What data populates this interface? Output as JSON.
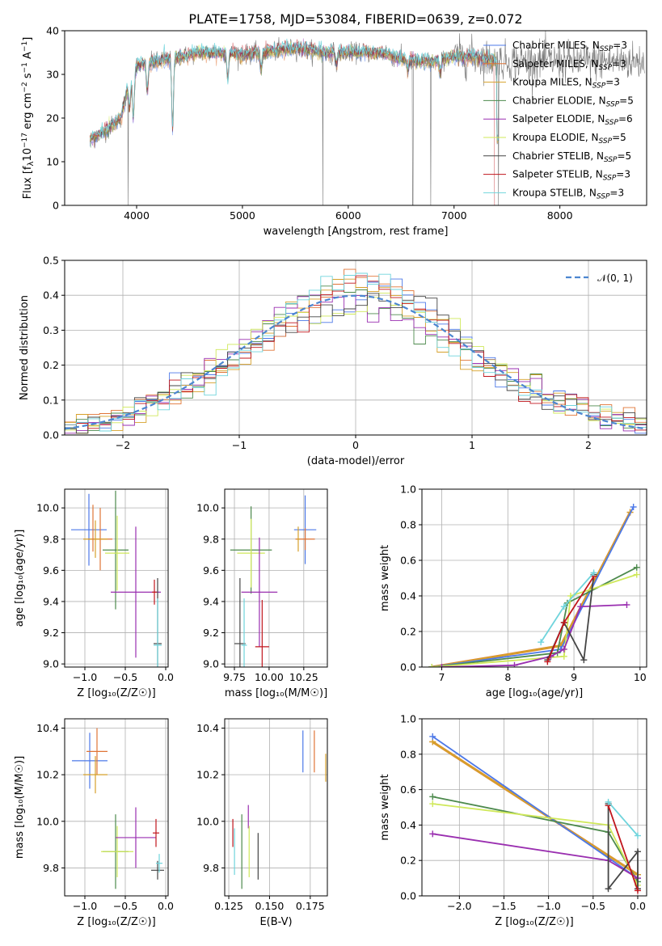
{
  "colors": {
    "Chabrier MILES": "#4c78e8",
    "Salpeter MILES": "#e07436",
    "Kroupa MILES": "#d6a02a",
    "Chabrier ELODIE": "#4d8a4d",
    "Salpeter ELODIE": "#9a2fb0",
    "Kroupa ELODIE": "#cfe85a",
    "Chabrier STELIB": "#444444",
    "Salpeter STELIB": "#c0161d",
    "Kroupa STELIB": "#6fd4dc",
    "gaussian": "#4c86d0"
  },
  "chart_data": [
    {
      "id": "spectrum",
      "type": "line",
      "title": "PLATE=1758, MJD=53084, FIBERID=0639, z=0.072",
      "xlabel": "wavelength [Angstrom, rest frame]",
      "ylabel_parts": [
        "Flux [f",
        "λ",
        "10",
        "−17",
        " erg cm",
        "−2",
        " s",
        "−1",
        " A",
        "−1",
        "]"
      ],
      "xlim": [
        3320,
        8820
      ],
      "ylim": [
        0,
        40
      ],
      "xticks": [
        "4000",
        "5000",
        "6000",
        "7000",
        "8000"
      ],
      "yticks": [
        "0",
        "10",
        "20",
        "30",
        "40"
      ],
      "grid": false,
      "legend_position": "right",
      "legend": [
        {
          "name": "Chabrier MILES",
          "nssp": "3"
        },
        {
          "name": "Salpeter MILES",
          "nssp": "3"
        },
        {
          "name": "Kroupa MILES",
          "nssp": "3"
        },
        {
          "name": "Chabrier ELODIE",
          "nssp": "5"
        },
        {
          "name": "Salpeter ELODIE",
          "nssp": "6"
        },
        {
          "name": "Kroupa ELODIE",
          "nssp": "5"
        },
        {
          "name": "Chabrier STELIB",
          "nssp": "5"
        },
        {
          "name": "Salpeter STELIB",
          "nssp": "3"
        },
        {
          "name": "Kroupa STELIB",
          "nssp": "3"
        }
      ],
      "continuum": [
        [
          3560,
          15
        ],
        [
          3700,
          17
        ],
        [
          3850,
          20
        ],
        [
          3930,
          28
        ],
        [
          4000,
          32
        ],
        [
          4200,
          33
        ],
        [
          4400,
          34
        ],
        [
          4600,
          35
        ],
        [
          4800,
          35
        ],
        [
          5000,
          34.5
        ],
        [
          5200,
          35
        ],
        [
          5500,
          36
        ],
        [
          5800,
          35
        ],
        [
          6000,
          35
        ],
        [
          6300,
          35
        ],
        [
          6560,
          33
        ],
        [
          6800,
          33
        ],
        [
          7000,
          34
        ],
        [
          7200,
          34
        ],
        [
          7400,
          33
        ]
      ],
      "absorption": [
        [
          3934,
          22
        ],
        [
          3969,
          20
        ],
        [
          4101,
          26
        ],
        [
          4340,
          18
        ],
        [
          4861,
          29
        ],
        [
          5175,
          31
        ],
        [
          5890,
          32
        ],
        [
          6563,
          31
        ],
        [
          6870,
          30
        ]
      ],
      "data_dropouts": [
        [
          3920,
          0
        ],
        [
          5760,
          0
        ],
        [
          6610,
          0
        ],
        [
          6780,
          0
        ],
        [
          7420,
          0
        ]
      ]
    },
    {
      "id": "residuals",
      "type": "step",
      "xlabel": "(data-model)/error",
      "ylabel": "Normed distribution",
      "xlim": [
        -2.5,
        2.5
      ],
      "ylim": [
        0,
        0.5
      ],
      "xticks": [
        "−2",
        "−1",
        "0",
        "1",
        "2"
      ],
      "yticks": [
        "0.0",
        "0.1",
        "0.2",
        "0.3",
        "0.4",
        "0.5"
      ],
      "grid": true,
      "legend_position": "upper right",
      "legend_label": "𝒩(0, 1)",
      "bin_width": 0.1,
      "gaussian": {
        "mean": 0,
        "sigma": 1
      }
    },
    {
      "id": "age-vs-z",
      "type": "errorbar",
      "xlabel": "Z [log₁₀(Z/Z☉)]",
      "ylabel": "age  [log₁₀(age/yr)]",
      "xlim": [
        -1.25,
        0.03
      ],
      "ylim": [
        8.98,
        10.12
      ],
      "xticks": [
        "−1.0",
        "−0.5",
        "0.0"
      ],
      "xtick_values": [
        -1.0,
        -0.5,
        0.0
      ],
      "yticks": [
        "9.0",
        "9.2",
        "9.4",
        "9.6",
        "9.8",
        "10.0"
      ],
      "ytick_values": [
        9.0,
        9.2,
        9.4,
        9.6,
        9.8,
        10.0
      ],
      "grid": true,
      "points": [
        {
          "series": "Chabrier MILES",
          "x": -0.95,
          "xerr": 0.22,
          "y": 9.86,
          "yerr": 0.23
        },
        {
          "series": "Salpeter MILES",
          "x": -0.81,
          "xerr": 0.15,
          "y": 9.8,
          "yerr": 0.2
        },
        {
          "series": "Kroupa MILES",
          "x": -0.87,
          "xerr": 0.15,
          "y": 9.8,
          "yerr": 0.12
        },
        {
          "series": "Chabrier ELODIE",
          "x": -0.62,
          "xerr": 0.16,
          "y": 9.73,
          "yerr": 0.38
        },
        {
          "series": "Kroupa ELODIE",
          "x": -0.6,
          "xerr": 0.15,
          "y": 9.71,
          "yerr": 0.24
        },
        {
          "series": "Salpeter ELODIE",
          "x": -0.37,
          "xerr": 0.31,
          "y": 9.46,
          "yerr": 0.42
        },
        {
          "series": "Chabrier STELIB",
          "x": -0.1,
          "xerr": 0.05,
          "y": 9.13,
          "yerr": 0.42
        },
        {
          "series": "Kroupa STELIB",
          "x": -0.1,
          "xerr": 0.05,
          "y": 9.12,
          "yerr": 0.3
        },
        {
          "series": "Salpeter STELIB",
          "x": -0.14,
          "xerr": 0.03,
          "y": 9.46,
          "yerr": 0.08
        },
        {
          "series": "Salpeter MILES",
          "x": -0.9,
          "xerr": 0,
          "y": 9.87,
          "yerr": 0.15
        }
      ]
    },
    {
      "id": "age-vs-mass",
      "type": "errorbar",
      "xlabel": "mass [log₁₀(M/M☉)]",
      "ylabel": "",
      "xlim": [
        9.68,
        10.42
      ],
      "ylim": [
        8.98,
        10.12
      ],
      "xticks": [
        "9.75",
        "10.00",
        "10.25"
      ],
      "xtick_values": [
        9.75,
        10.0,
        10.25
      ],
      "yticks": [
        "9.0",
        "9.2",
        "9.4",
        "9.6",
        "9.8",
        "10.0"
      ],
      "ytick_values": [
        9.0,
        9.2,
        9.4,
        9.6,
        9.8,
        10.0
      ],
      "grid": true,
      "points": [
        {
          "series": "Chabrier MILES",
          "x": 10.26,
          "xerr": 0.08,
          "y": 9.86,
          "yerr": 0.22
        },
        {
          "series": "Salpeter MILES",
          "x": 10.26,
          "xerr": 0.07,
          "y": 9.8,
          "yerr": 0.07
        },
        {
          "series": "Kroupa MILES",
          "x": 10.21,
          "xerr": 0.01,
          "y": 9.8,
          "yerr": 0.08
        },
        {
          "series": "Chabrier ELODIE",
          "x": 9.87,
          "xerr": 0.15,
          "y": 9.73,
          "yerr": 0.28
        },
        {
          "series": "Kroupa ELODIE",
          "x": 9.87,
          "xerr": 0.1,
          "y": 9.71,
          "yerr": 0.22
        },
        {
          "series": "Salpeter ELODIE",
          "x": 9.93,
          "xerr": 0.13,
          "y": 9.46,
          "yerr": 0.35
        },
        {
          "series": "Chabrier STELIB",
          "x": 9.79,
          "xerr": 0.04,
          "y": 9.13,
          "yerr": 0.42
        },
        {
          "series": "Kroupa STELIB",
          "x": 9.82,
          "xerr": 0.02,
          "y": 9.12,
          "yerr": 0.3
        },
        {
          "series": "Salpeter STELIB",
          "x": 9.95,
          "xerr": 0.05,
          "y": 9.11,
          "yerr": 0.3
        }
      ]
    },
    {
      "id": "weight-vs-age",
      "type": "line",
      "xlabel": "age  [log₁₀(age/yr)]",
      "ylabel": "mass weight",
      "xlim": [
        6.7,
        10.1
      ],
      "ylim": [
        0,
        1
      ],
      "xticks": [
        "7",
        "8",
        "9",
        "10"
      ],
      "xtick_values": [
        7,
        8,
        9,
        10
      ],
      "yticks": [
        "0.0",
        "0.2",
        "0.4",
        "0.6",
        "0.8",
        "1.0"
      ],
      "ytick_values": [
        0,
        0.2,
        0.4,
        0.6,
        0.8,
        1.0
      ],
      "grid": true,
      "series": [
        {
          "name": "Salpeter MILES",
          "x": [
            6.85,
            8.8,
            9.85
          ],
          "y": [
            0.0,
            0.12,
            0.87
          ]
        },
        {
          "name": "Kroupa MILES",
          "x": [
            6.85,
            8.8,
            9.85
          ],
          "y": [
            0.0,
            0.12,
            0.87
          ]
        },
        {
          "name": "Chabrier MILES",
          "x": [
            6.85,
            8.8,
            9.9
          ],
          "y": [
            0.0,
            0.1,
            0.9
          ]
        },
        {
          "name": "Chabrier ELODIE",
          "x": [
            6.85,
            8.75,
            8.9,
            9.95
          ],
          "y": [
            0.0,
            0.08,
            0.36,
            0.56
          ]
        },
        {
          "name": "Kroupa ELODIE",
          "x": [
            6.85,
            8.85,
            8.95,
            9.95
          ],
          "y": [
            0.0,
            0.06,
            0.4,
            0.52
          ]
        },
        {
          "name": "Salpeter ELODIE",
          "x": [
            7.0,
            8.1,
            8.65,
            8.85,
            9.1,
            9.8
          ],
          "y": [
            0.0,
            0.01,
            0.06,
            0.1,
            0.34,
            0.35
          ]
        },
        {
          "name": "Chabrier STELIB",
          "x": [
            8.6,
            8.85,
            9.15,
            9.3
          ],
          "y": [
            0.04,
            0.25,
            0.04,
            0.52
          ]
        },
        {
          "name": "Salpeter STELIB",
          "x": [
            8.6,
            8.85,
            9.3
          ],
          "y": [
            0.03,
            0.25,
            0.51
          ]
        },
        {
          "name": "Kroupa STELIB",
          "x": [
            8.5,
            8.85,
            9.3
          ],
          "y": [
            0.14,
            0.34,
            0.53
          ]
        }
      ]
    },
    {
      "id": "mass-vs-z",
      "type": "errorbar",
      "xlabel": "Z [log₁₀(Z/Z☉)]",
      "ylabel": "mass [log₁₀(M/M☉)]",
      "xlim": [
        -1.25,
        0.03
      ],
      "ylim": [
        9.68,
        10.44
      ],
      "xticks": [
        "−1.0",
        "−0.5",
        "0.0"
      ],
      "xtick_values": [
        -1.0,
        -0.5,
        0.0
      ],
      "yticks": [
        "9.8",
        "10.0",
        "10.2",
        "10.4"
      ],
      "ytick_values": [
        9.8,
        10.0,
        10.2,
        10.4
      ],
      "grid": true,
      "points": [
        {
          "series": "Chabrier MILES",
          "x": -0.94,
          "xerr": 0.22,
          "y": 10.26,
          "yerr": 0.12
        },
        {
          "series": "Salpeter MILES",
          "x": -0.85,
          "xerr": 0.13,
          "y": 10.3,
          "yerr": 0.1
        },
        {
          "series": "Kroupa MILES",
          "x": -0.87,
          "xerr": 0.15,
          "y": 10.2,
          "yerr": 0.08
        },
        {
          "series": "Chabrier ELODIE",
          "x": -0.62,
          "xerr": 0.16,
          "y": 9.87,
          "yerr": 0.16
        },
        {
          "series": "Kroupa ELODIE",
          "x": -0.6,
          "xerr": 0.2,
          "y": 9.87,
          "yerr": 0.11
        },
        {
          "series": "Salpeter ELODIE",
          "x": -0.37,
          "xerr": 0.25,
          "y": 9.93,
          "yerr": 0.13
        },
        {
          "series": "Chabrier STELIB",
          "x": -0.1,
          "xerr": 0.08,
          "y": 9.79,
          "yerr": 0.04
        },
        {
          "series": "Kroupa STELIB",
          "x": -0.08,
          "xerr": 0.04,
          "y": 9.82,
          "yerr": 0.04
        },
        {
          "series": "Salpeter STELIB",
          "x": -0.12,
          "xerr": 0.04,
          "y": 9.95,
          "yerr": 0.06
        }
      ]
    },
    {
      "id": "mass-vs-ebv",
      "type": "errorbar",
      "xlabel": "E(B-V)",
      "ylabel": "",
      "xlim": [
        0.1225,
        0.1855
      ],
      "ylim": [
        9.68,
        10.44
      ],
      "xticks": [
        "0.125",
        "0.150",
        "0.175"
      ],
      "xtick_values": [
        0.125,
        0.15,
        0.175
      ],
      "yticks": [
        "9.8",
        "10.0",
        "10.2",
        "10.4"
      ],
      "ytick_values": [
        9.8,
        10.0,
        10.2,
        10.4
      ],
      "grid": true,
      "points": [
        {
          "series": "Chabrier MILES",
          "x": 0.1705,
          "xerr": 0,
          "y": 10.3,
          "yerr": 0.09
        },
        {
          "series": "Salpeter MILES",
          "x": 0.1775,
          "xerr": 0,
          "y": 10.3,
          "yerr": 0.09
        },
        {
          "series": "Kroupa MILES",
          "x": 0.1845,
          "xerr": 0,
          "y": 10.23,
          "yerr": 0.06
        },
        {
          "series": "Salpeter STELIB",
          "x": 0.1275,
          "xerr": 0,
          "y": 9.95,
          "yerr": 0.06
        },
        {
          "series": "Kroupa STELIB",
          "x": 0.1285,
          "xerr": 0,
          "y": 9.87,
          "yerr": 0.1
        },
        {
          "series": "Chabrier ELODIE",
          "x": 0.133,
          "xerr": 0,
          "y": 9.87,
          "yerr": 0.16
        },
        {
          "series": "Salpeter ELODIE",
          "x": 0.137,
          "xerr": 0,
          "y": 10.02,
          "yerr": 0.05
        },
        {
          "series": "Kroupa ELODIE",
          "x": 0.1375,
          "xerr": 0,
          "y": 9.87,
          "yerr": 0.11
        },
        {
          "series": "Chabrier STELIB",
          "x": 0.143,
          "xerr": 0,
          "y": 9.85,
          "yerr": 0.1
        }
      ]
    },
    {
      "id": "weight-vs-z",
      "type": "line",
      "xlabel": "Z [log₁₀(Z/Z☉)]",
      "ylabel": "mass weight",
      "xlim": [
        -2.42,
        0.1
      ],
      "ylim": [
        0,
        1
      ],
      "xticks": [
        "−2.0",
        "−1.5",
        "−1.0",
        "−0.5",
        "0.0"
      ],
      "xtick_values": [
        -2.0,
        -1.5,
        -1.0,
        -0.5,
        0.0
      ],
      "yticks": [
        "0.0",
        "0.2",
        "0.4",
        "0.6",
        "0.8",
        "1.0"
      ],
      "ytick_values": [
        0,
        0.2,
        0.4,
        0.6,
        0.8,
        1.0
      ],
      "grid": true,
      "series": [
        {
          "name": "Salpeter MILES",
          "x": [
            -2.3,
            0.0
          ],
          "y": [
            0.87,
            0.12
          ]
        },
        {
          "name": "Kroupa MILES",
          "x": [
            -2.3,
            0.0
          ],
          "y": [
            0.87,
            0.12
          ]
        },
        {
          "name": "Chabrier MILES",
          "x": [
            -2.3,
            0.0
          ],
          "y": [
            0.9,
            0.1
          ]
        },
        {
          "name": "Chabrier ELODIE",
          "x": [
            -2.3,
            -0.33,
            0.0
          ],
          "y": [
            0.56,
            0.36,
            0.08
          ]
        },
        {
          "name": "Kroupa ELODIE",
          "x": [
            -2.3,
            -0.33,
            0.0
          ],
          "y": [
            0.52,
            0.4,
            0.06
          ]
        },
        {
          "name": "Salpeter ELODIE",
          "x": [
            -2.3,
            -0.33,
            0.0
          ],
          "y": [
            0.35,
            0.2,
            0.1
          ]
        },
        {
          "name": "Chabrier STELIB",
          "x": [
            -0.33,
            -0.33,
            0.0,
            0.0
          ],
          "y": [
            0.52,
            0.04,
            0.25,
            0.04
          ]
        },
        {
          "name": "Salpeter STELIB",
          "x": [
            -0.33,
            0.0
          ],
          "y": [
            0.51,
            0.03
          ]
        },
        {
          "name": "Kroupa STELIB",
          "x": [
            -0.33,
            0.0
          ],
          "y": [
            0.53,
            0.34
          ]
        }
      ]
    }
  ]
}
